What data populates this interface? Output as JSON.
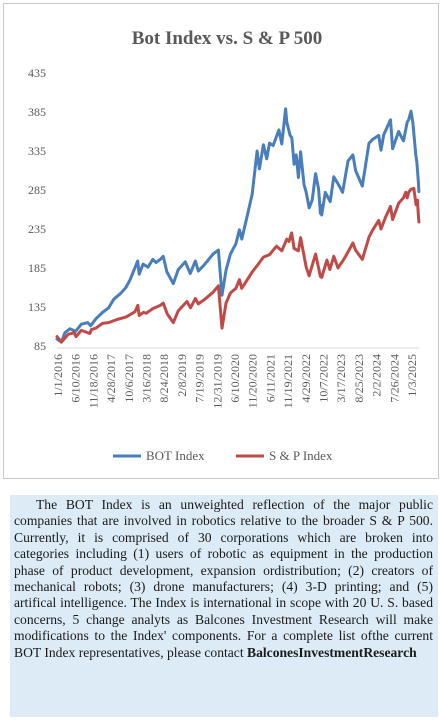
{
  "chart_data": {
    "type": "line",
    "title": "Bot Index vs. S & P 500",
    "ylim": [
      85,
      435
    ],
    "yticks": [
      85,
      135,
      185,
      235,
      285,
      335,
      385,
      435
    ],
    "grid": false,
    "legend_position": "bottom",
    "x_tick_labels": [
      "1/1/2016",
      "6/10/2016",
      "11/18/2016",
      "4/28/2017",
      "10/6/2017",
      "3/16/2018",
      "8/24/2018",
      "2/8/2019",
      "7/19/2019",
      "12/31/2019",
      "6/10/2020",
      "11/20/2020",
      "6/11/2021",
      "11/19/2021",
      "4/29/2022",
      "10/7/2022",
      "3/17/2023",
      "8/25/2023",
      "2/2/2024",
      "7/26/2024",
      "1/3/2025"
    ],
    "series": [
      {
        "name": "BOT Index",
        "color": "#4a7ebb",
        "points": [
          [
            "2016-01-01",
            94
          ],
          [
            "2016-02-11",
            90
          ],
          [
            "2016-03-15",
            102
          ],
          [
            "2016-05-01",
            107
          ],
          [
            "2016-06-24",
            104
          ],
          [
            "2016-08-15",
            113
          ],
          [
            "2016-10-15",
            115
          ],
          [
            "2016-11-10",
            111
          ],
          [
            "2016-12-31",
            120
          ],
          [
            "2017-03-01",
            128
          ],
          [
            "2017-04-28",
            134
          ],
          [
            "2017-06-15",
            145
          ],
          [
            "2017-08-15",
            152
          ],
          [
            "2017-10-06",
            160
          ],
          [
            "2017-11-15",
            170
          ],
          [
            "2018-01-25",
            194
          ],
          [
            "2018-02-08",
            177
          ],
          [
            "2018-03-16",
            190
          ],
          [
            "2018-05-01",
            186
          ],
          [
            "2018-06-15",
            196
          ],
          [
            "2018-07-15",
            192
          ],
          [
            "2018-08-24",
            196
          ],
          [
            "2018-09-20",
            200
          ],
          [
            "2018-10-25",
            180
          ],
          [
            "2018-12-24",
            165
          ],
          [
            "2019-02-08",
            183
          ],
          [
            "2019-04-15",
            193
          ],
          [
            "2019-05-31",
            178
          ],
          [
            "2019-07-19",
            194
          ],
          [
            "2019-08-15",
            181
          ],
          [
            "2019-10-15",
            190
          ],
          [
            "2019-12-31",
            203
          ],
          [
            "2020-02-19",
            208
          ],
          [
            "2020-03-23",
            150
          ],
          [
            "2020-04-30",
            182
          ],
          [
            "2020-06-10",
            203
          ],
          [
            "2020-07-31",
            216
          ],
          [
            "2020-09-02",
            234
          ],
          [
            "2020-09-25",
            222
          ],
          [
            "2020-11-20",
            255
          ],
          [
            "2020-12-31",
            280
          ],
          [
            "2021-02-15",
            335
          ],
          [
            "2021-03-08",
            312
          ],
          [
            "2021-04-15",
            343
          ],
          [
            "2021-05-15",
            325
          ],
          [
            "2021-06-11",
            345
          ],
          [
            "2021-07-15",
            342
          ],
          [
            "2021-09-07",
            362
          ],
          [
            "2021-10-04",
            344
          ],
          [
            "2021-11-08",
            389
          ],
          [
            "2021-11-19",
            372
          ],
          [
            "2021-12-20",
            355
          ],
          [
            "2022-01-05",
            352
          ],
          [
            "2022-01-27",
            318
          ],
          [
            "2022-02-15",
            330
          ],
          [
            "2022-03-08",
            301
          ],
          [
            "2022-03-29",
            334
          ],
          [
            "2022-04-29",
            292
          ],
          [
            "2022-05-20",
            282
          ],
          [
            "2022-06-16",
            262
          ],
          [
            "2022-07-15",
            272
          ],
          [
            "2022-08-16",
            306
          ],
          [
            "2022-09-13",
            286
          ],
          [
            "2022-09-30",
            255
          ],
          [
            "2022-10-07",
            265
          ],
          [
            "2022-10-12",
            253
          ],
          [
            "2022-11-15",
            282
          ],
          [
            "2022-12-30",
            270
          ],
          [
            "2023-02-02",
            302
          ],
          [
            "2023-03-17",
            292
          ],
          [
            "2023-04-25",
            282
          ],
          [
            "2023-06-15",
            322
          ],
          [
            "2023-07-31",
            330
          ],
          [
            "2023-08-25",
            310
          ],
          [
            "2023-10-27",
            290
          ],
          [
            "2023-12-28",
            345
          ],
          [
            "2024-02-02",
            350
          ],
          [
            "2024-03-28",
            355
          ],
          [
            "2024-04-19",
            336
          ],
          [
            "2024-05-15",
            356
          ],
          [
            "2024-07-16",
            375
          ],
          [
            "2024-08-05",
            338
          ],
          [
            "2024-09-30",
            360
          ],
          [
            "2024-11-15",
            348
          ],
          [
            "2024-12-20",
            372
          ],
          [
            "2025-01-03",
            375
          ],
          [
            "2025-01-24",
            386
          ],
          [
            "2025-02-10",
            372
          ],
          [
            "2025-03-10",
            330
          ],
          [
            "2025-03-20",
            320
          ],
          [
            "2025-04-03",
            295
          ],
          [
            "2025-04-08",
            283
          ]
        ]
      },
      {
        "name": "S & P Index",
        "color": "#be4b48",
        "points": [
          [
            "2016-01-01",
            97
          ],
          [
            "2016-02-11",
            90
          ],
          [
            "2016-04-15",
            100
          ],
          [
            "2016-06-10",
            102
          ],
          [
            "2016-06-27",
            97
          ],
          [
            "2016-08-15",
            105
          ],
          [
            "2016-11-04",
            101
          ],
          [
            "2016-11-18",
            106
          ],
          [
            "2016-12-31",
            108
          ],
          [
            "2017-03-01",
            114
          ],
          [
            "2017-04-28",
            115
          ],
          [
            "2017-07-15",
            119
          ],
          [
            "2017-10-06",
            122
          ],
          [
            "2017-12-31",
            129
          ],
          [
            "2018-01-26",
            137
          ],
          [
            "2018-02-08",
            124
          ],
          [
            "2018-03-16",
            128
          ],
          [
            "2018-04-15",
            127
          ],
          [
            "2018-06-15",
            133
          ],
          [
            "2018-08-24",
            137
          ],
          [
            "2018-09-20",
            140
          ],
          [
            "2018-10-29",
            126
          ],
          [
            "2018-12-24",
            115
          ],
          [
            "2019-02-08",
            130
          ],
          [
            "2019-04-30",
            142
          ],
          [
            "2019-06-03",
            134
          ],
          [
            "2019-07-19",
            146
          ],
          [
            "2019-08-15",
            139
          ],
          [
            "2019-10-15",
            145
          ],
          [
            "2019-12-31",
            154
          ],
          [
            "2020-02-19",
            162
          ],
          [
            "2020-03-23",
            108
          ],
          [
            "2020-04-30",
            140
          ],
          [
            "2020-06-10",
            153
          ],
          [
            "2020-07-31",
            159
          ],
          [
            "2020-09-02",
            170
          ],
          [
            "2020-09-24",
            159
          ],
          [
            "2020-11-20",
            171
          ],
          [
            "2020-12-31",
            180
          ],
          [
            "2021-02-15",
            188
          ],
          [
            "2021-04-15",
            199
          ],
          [
            "2021-06-11",
            202
          ],
          [
            "2021-08-15",
            213
          ],
          [
            "2021-10-04",
            207
          ],
          [
            "2021-11-19",
            222
          ],
          [
            "2021-12-10",
            219
          ],
          [
            "2022-01-03",
            230
          ],
          [
            "2022-01-27",
            210
          ],
          [
            "2022-03-08",
            207
          ],
          [
            "2022-03-29",
            224
          ],
          [
            "2022-05-20",
            186
          ],
          [
            "2022-06-16",
            175
          ],
          [
            "2022-08-16",
            203
          ],
          [
            "2022-09-30",
            174
          ],
          [
            "2022-10-12",
            173
          ],
          [
            "2022-11-30",
            195
          ],
          [
            "2022-12-28",
            183
          ],
          [
            "2023-02-02",
            200
          ],
          [
            "2023-03-13",
            185
          ],
          [
            "2023-05-15",
            198
          ],
          [
            "2023-07-31",
            217
          ],
          [
            "2023-08-25",
            208
          ],
          [
            "2023-10-27",
            196
          ],
          [
            "2023-12-29",
            225
          ],
          [
            "2024-02-02",
            234
          ],
          [
            "2024-03-28",
            246
          ],
          [
            "2024-04-19",
            235
          ],
          [
            "2024-05-31",
            250
          ],
          [
            "2024-07-16",
            264
          ],
          [
            "2024-08-05",
            247
          ],
          [
            "2024-09-30",
            268
          ],
          [
            "2024-11-15",
            275
          ],
          [
            "2024-12-06",
            282
          ],
          [
            "2024-12-20",
            275
          ],
          [
            "2025-01-03",
            282
          ],
          [
            "2025-01-24",
            286
          ],
          [
            "2025-02-19",
            287
          ],
          [
            "2025-03-13",
            266
          ],
          [
            "2025-03-25",
            272
          ],
          [
            "2025-04-03",
            252
          ],
          [
            "2025-04-08",
            244
          ]
        ]
      }
    ]
  },
  "description": {
    "body": "The BOT Index is an unweighted reflection of the major public companies that are involved in robotics relative to the broader S & P 500. Currently, it is comprised of 30 corporations which are broken into categories including (1) users of robotic as equipment in the production phase of product development, expansion ordistribution; (2) creators of mechanical robots; (3) drone manufacturers; (4) 3-D printing; and (5) artifical intelligence. The Index is international in scope with 20 U. S. based concerns, 5 change analyts as Balcones Investment Research will make modifications to the Index' components. For a  complete list ofthe current BOT Index representatives, please contact ",
    "strong": "BalconesInvestmentResearch"
  }
}
